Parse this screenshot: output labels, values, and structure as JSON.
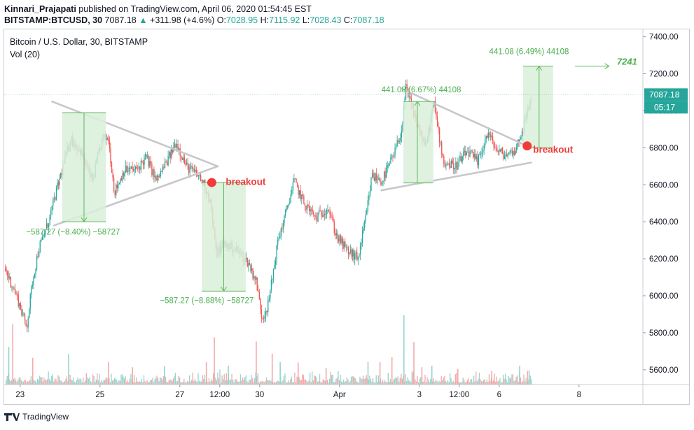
{
  "header": {
    "author": "Kinnari_Prajapati",
    "published_text": " published on TradingView.com, April 06, 2020 01:54:45 EST",
    "symbol": "BITSTAMP:BTCUSD, 30",
    "last": " 7087.18 ",
    "change": " +311.98 (+4.6%)",
    "o_label": " O:",
    "o_value": "7028.95",
    "h_label": " H:",
    "h_value": "7115.92",
    "l_label": " L:",
    "l_value": "7028.43",
    "c_label": " C:",
    "c_value": "7087.18"
  },
  "chart_title": "Bitcoin / U.S. Dollar, 30, BITSTAMP",
  "volume_label": "Vol (20)",
  "price_tag": {
    "value": "7087.18",
    "countdown": "05:17"
  },
  "footer": {
    "brand": "TradingView"
  },
  "colors": {
    "up": "#26a69a",
    "down": "#ef5350",
    "vol_up": "#98d4ce",
    "vol_down": "#f4a9a9",
    "measure_fill": "#d9efd9",
    "measure_line": "#5cb85c",
    "measure_text": "#4caf50",
    "trendline": "#c8c8cc",
    "breakout": "#f23a3a"
  },
  "chart_data": {
    "type": "candlestick",
    "title": "Bitcoin / U.S. Dollar, 30, BITSTAMP",
    "ylim": [
      5520,
      7440
    ],
    "y_ticks": [
      5600,
      5800,
      6000,
      6200,
      6400,
      6600,
      6800,
      7000,
      7200,
      7400
    ],
    "y_tick_labels": [
      "5600.00",
      "5800.00",
      "6000.00",
      "6200.00",
      "6400.00",
      "6600.00",
      "6800.00",
      "7000.00",
      "7200.00",
      "7400.00"
    ],
    "xlim": [
      0,
      16
    ],
    "x_ticks": [
      {
        "t": 0.4,
        "label": "23"
      },
      {
        "t": 2.4,
        "label": "25"
      },
      {
        "t": 4.4,
        "label": "27"
      },
      {
        "t": 5.4,
        "label": "12:00"
      },
      {
        "t": 6.4,
        "label": "30"
      },
      {
        "t": 8.4,
        "label": "Apr"
      },
      {
        "t": 10.4,
        "label": "3"
      },
      {
        "t": 11.4,
        "label": "12:00"
      },
      {
        "t": 12.4,
        "label": "6"
      },
      {
        "t": 14.4,
        "label": "8"
      }
    ],
    "price_path": [
      [
        0.0,
        6150
      ],
      [
        0.3,
        6000
      ],
      [
        0.55,
        5830
      ],
      [
        0.7,
        6080
      ],
      [
        0.85,
        6250
      ],
      [
        1.1,
        6400
      ],
      [
        1.4,
        6650
      ],
      [
        1.65,
        6850
      ],
      [
        1.9,
        6780
      ],
      [
        2.2,
        6620
      ],
      [
        2.45,
        6850
      ],
      [
        2.6,
        6850
      ],
      [
        2.75,
        6560
      ],
      [
        3.0,
        6680
      ],
      [
        3.3,
        6680
      ],
      [
        3.55,
        6750
      ],
      [
        3.8,
        6620
      ],
      [
        4.1,
        6740
      ],
      [
        4.3,
        6830
      ],
      [
        4.55,
        6700
      ],
      [
        4.85,
        6650
      ],
      [
        5.0,
        6600
      ],
      [
        5.15,
        6520
      ],
      [
        5.3,
        6230
      ],
      [
        5.5,
        6280
      ],
      [
        5.8,
        6250
      ],
      [
        6.1,
        6180
      ],
      [
        6.3,
        6080
      ],
      [
        6.45,
        5880
      ],
      [
        6.6,
        5950
      ],
      [
        6.85,
        6300
      ],
      [
        7.05,
        6450
      ],
      [
        7.25,
        6620
      ],
      [
        7.5,
        6500
      ],
      [
        7.8,
        6420
      ],
      [
        8.1,
        6480
      ],
      [
        8.3,
        6330
      ],
      [
        8.55,
        6250
      ],
      [
        8.85,
        6200
      ],
      [
        9.05,
        6420
      ],
      [
        9.2,
        6650
      ],
      [
        9.45,
        6620
      ],
      [
        9.75,
        6760
      ],
      [
        9.95,
        6900
      ],
      [
        10.05,
        7120
      ],
      [
        10.3,
        6950
      ],
      [
        10.55,
        6800
      ],
      [
        10.75,
        7040
      ],
      [
        11.0,
        6720
      ],
      [
        11.3,
        6700
      ],
      [
        11.6,
        6780
      ],
      [
        11.85,
        6720
      ],
      [
        12.1,
        6880
      ],
      [
        12.35,
        6780
      ],
      [
        12.55,
        6760
      ],
      [
        12.8,
        6790
      ],
      [
        13.05,
        6950
      ],
      [
        13.2,
        7087
      ]
    ],
    "volume_max": 2000,
    "volume_spikes": [
      {
        "t": 0.1,
        "v": 720
      },
      {
        "t": 0.2,
        "v": 1150
      },
      {
        "t": 0.7,
        "v": 510
      },
      {
        "t": 1.6,
        "v": 580
      },
      {
        "t": 2.6,
        "v": 430
      },
      {
        "t": 3.2,
        "v": 330
      },
      {
        "t": 4.0,
        "v": 350
      },
      {
        "t": 5.05,
        "v": 430
      },
      {
        "t": 5.25,
        "v": 900
      },
      {
        "t": 5.6,
        "v": 360
      },
      {
        "t": 6.3,
        "v": 820
      },
      {
        "t": 6.7,
        "v": 590
      },
      {
        "t": 6.9,
        "v": 430
      },
      {
        "t": 7.35,
        "v": 420
      },
      {
        "t": 8.05,
        "v": 320
      },
      {
        "t": 9.1,
        "v": 430
      },
      {
        "t": 9.4,
        "v": 430
      },
      {
        "t": 9.7,
        "v": 520
      },
      {
        "t": 10.0,
        "v": 1320
      },
      {
        "t": 10.25,
        "v": 810
      },
      {
        "t": 10.45,
        "v": 330
      },
      {
        "t": 10.7,
        "v": 360
      },
      {
        "t": 11.35,
        "v": 300
      },
      {
        "t": 12.2,
        "v": 260
      },
      {
        "t": 12.9,
        "v": 360
      },
      {
        "t": 13.1,
        "v": 260
      }
    ],
    "triangles": [
      {
        "upper": [
          [
            1.2,
            7050
          ],
          [
            5.35,
            6700
          ]
        ],
        "lower": [
          [
            1.25,
            6380
          ],
          [
            5.35,
            6700
          ]
        ]
      },
      {
        "upper": [
          [
            9.95,
            7120
          ],
          [
            13.2,
            6800
          ]
        ],
        "lower": [
          [
            9.45,
            6570
          ],
          [
            13.2,
            6720
          ]
        ]
      }
    ],
    "measured_moves": [
      {
        "t0": 1.45,
        "t1": 2.55,
        "p0": 6990,
        "p1": 6400,
        "arrow_t": 2.0,
        "dir": "down",
        "label": "−587.27 (−8.40%) −58727",
        "label_t": 0.55,
        "label_p": 6330
      },
      {
        "t0": 4.95,
        "t1": 6.05,
        "p0": 6612,
        "p1": 6025,
        "arrow_t": 5.5,
        "dir": "down",
        "label": "−587.27 (−8.88%) −58727",
        "label_t": 3.9,
        "label_p": 5960
      },
      {
        "t0": 10.0,
        "t1": 10.75,
        "p0": 6610,
        "p1": 7050,
        "arrow_t": 10.35,
        "dir": "up",
        "label": "441.08 (6.67%) 44108",
        "label_t": 9.45,
        "label_p": 7100
      },
      {
        "t0": 13.0,
        "t1": 13.75,
        "p0": 6800,
        "p1": 7241,
        "arrow_t": 13.4,
        "dir": "up",
        "label": "441.08 (6.49%) 44108",
        "label_t": 12.15,
        "label_p": 7305
      }
    ],
    "breakouts": [
      {
        "t": 5.2,
        "p": 6612,
        "label": "breakout",
        "label_t": 5.55,
        "label_p": 6600
      },
      {
        "t": 13.1,
        "p": 6810,
        "label": "breakout",
        "label_t": 13.25,
        "label_p": 6772
      }
    ],
    "target": {
      "t0": 14.3,
      "t1": 15.15,
      "p": 7241,
      "label": "7241",
      "label_t": 15.35,
      "label_p": 7250
    }
  }
}
